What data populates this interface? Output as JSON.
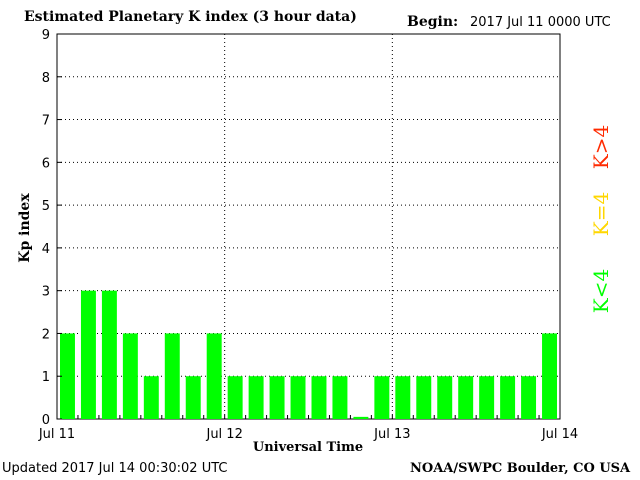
{
  "header": {
    "title": "Estimated Planetary K index (3 hour data)",
    "begin_label": "Begin:",
    "begin_value": "2017 Jul 11 0000 UTC"
  },
  "footer": {
    "updated": "Updated 2017 Jul 14 00:30:02 UTC",
    "source": "NOAA/SWPC Boulder, CO USA"
  },
  "legend": [
    {
      "label": "K<4",
      "color": "#00ff00"
    },
    {
      "label": "K=4",
      "color": "#ffd700"
    },
    {
      "label": "K>4",
      "color": "#ff2a00"
    }
  ],
  "colors": {
    "bar": "#00ff00",
    "grid": "#000000",
    "background": "#ffffff"
  },
  "chart_data": {
    "type": "bar",
    "title": "Estimated Planetary K index (3 hour data)",
    "xlabel": "Universal Time",
    "ylabel": "Kp index",
    "ylim": [
      0,
      9
    ],
    "yticks": [
      0,
      1,
      2,
      3,
      4,
      5,
      6,
      7,
      8,
      9
    ],
    "xticks": [
      "Jul 11",
      "Jul 12",
      "Jul 13",
      "Jul 14"
    ],
    "grid": true,
    "values": [
      2,
      3,
      3,
      2,
      1,
      2,
      1,
      2,
      1,
      1,
      1,
      1,
      1,
      1,
      0.05,
      1,
      1,
      1,
      1,
      1,
      1,
      1,
      1,
      2
    ]
  }
}
